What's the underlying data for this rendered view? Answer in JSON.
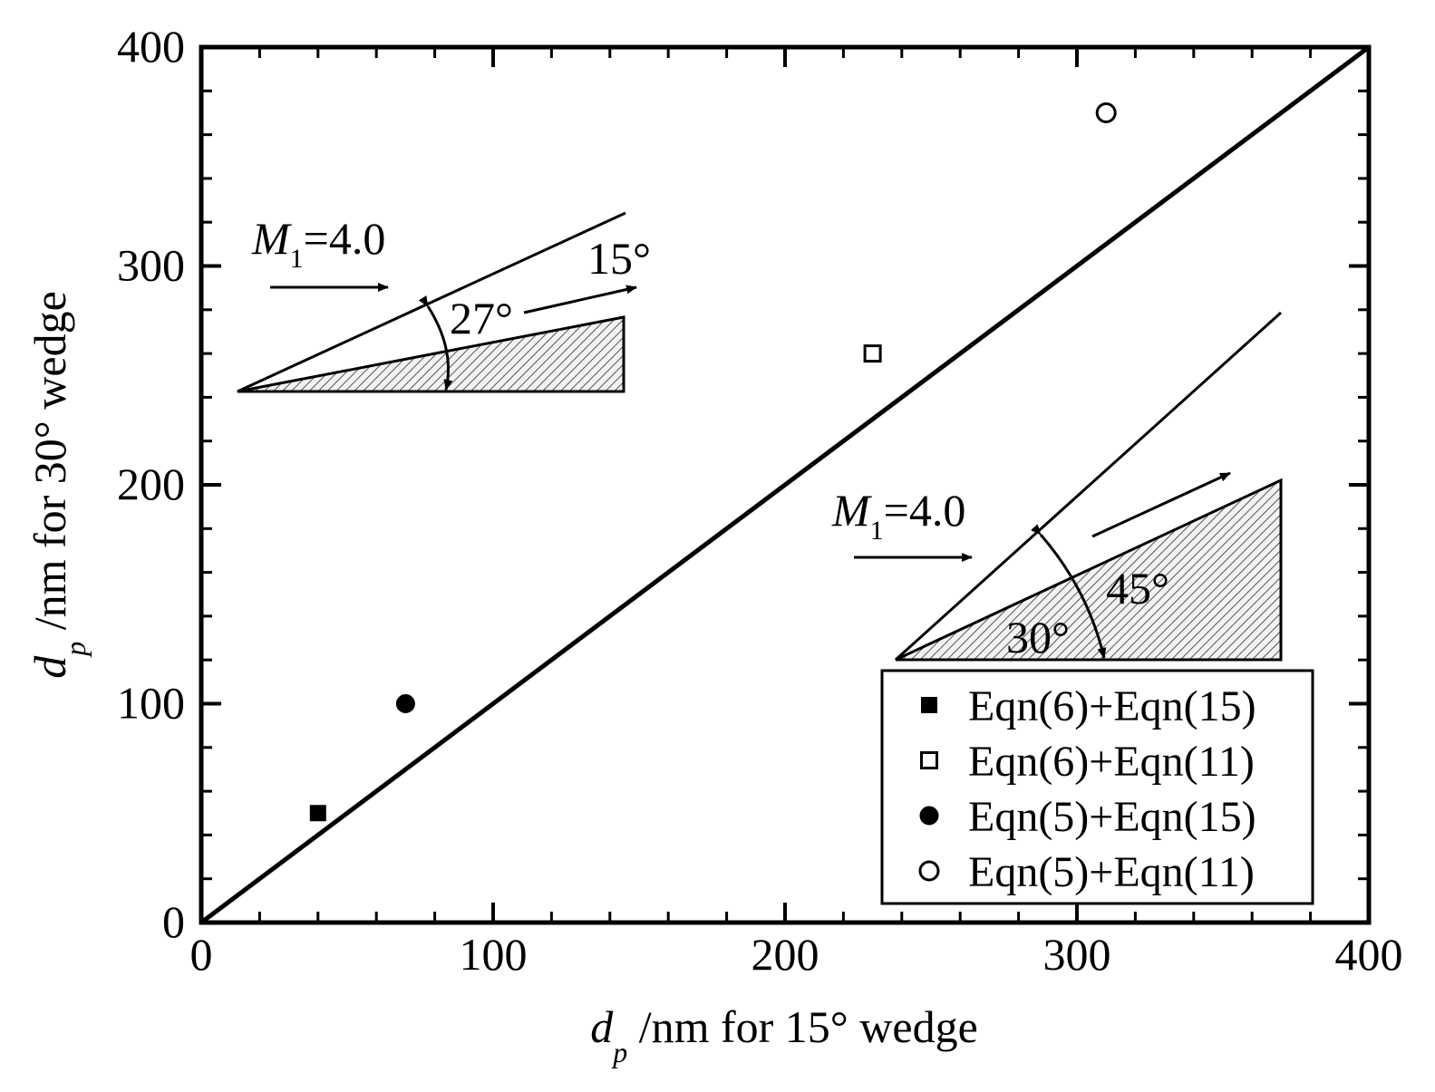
{
  "chart_data": {
    "type": "scatter",
    "title": "",
    "xlabel": {
      "var": "d",
      "sub": "p",
      "text": " /nm for 15° wedge"
    },
    "ylabel": {
      "var": "d",
      "sub": "p",
      "text": " /nm for 30° wedge"
    },
    "xlim": [
      0,
      400
    ],
    "ylim": [
      0,
      400
    ],
    "xticks": [
      0,
      100,
      200,
      300,
      400
    ],
    "yticks": [
      0,
      100,
      200,
      300,
      400
    ],
    "tick_labels_x": [
      "0",
      "100",
      "200",
      "300",
      "400"
    ],
    "tick_labels_y": [
      "0",
      "100",
      "200",
      "300",
      "400"
    ],
    "grid": false,
    "legend_position": "bottom-right",
    "reference_line": {
      "x": [
        0,
        400
      ],
      "y": [
        0,
        400
      ]
    },
    "series": [
      {
        "name": "Eqn(6)+Eqn(15)",
        "marker": "square-filled",
        "x": [
          40
        ],
        "y": [
          50
        ]
      },
      {
        "name": "Eqn(6)+Eqn(11)",
        "marker": "square-open",
        "x": [
          230
        ],
        "y": [
          260
        ]
      },
      {
        "name": "Eqn(5)+Eqn(15)",
        "marker": "circle-filled",
        "x": [
          70
        ],
        "y": [
          100
        ]
      },
      {
        "name": "Eqn(5)+Eqn(11)",
        "marker": "circle-open",
        "x": [
          310
        ],
        "y": [
          370
        ]
      }
    ],
    "annotations": {
      "wedge15": {
        "mach_var": "M",
        "mach_sub": "1",
        "mach_val": "=4.0",
        "wedge_angle": "15°",
        "shock_angle": "27°"
      },
      "wedge30": {
        "mach_var": "M",
        "mach_sub": "1",
        "mach_val": "=4.0",
        "wedge_angle": "30°",
        "shock_angle": "45°"
      }
    }
  }
}
